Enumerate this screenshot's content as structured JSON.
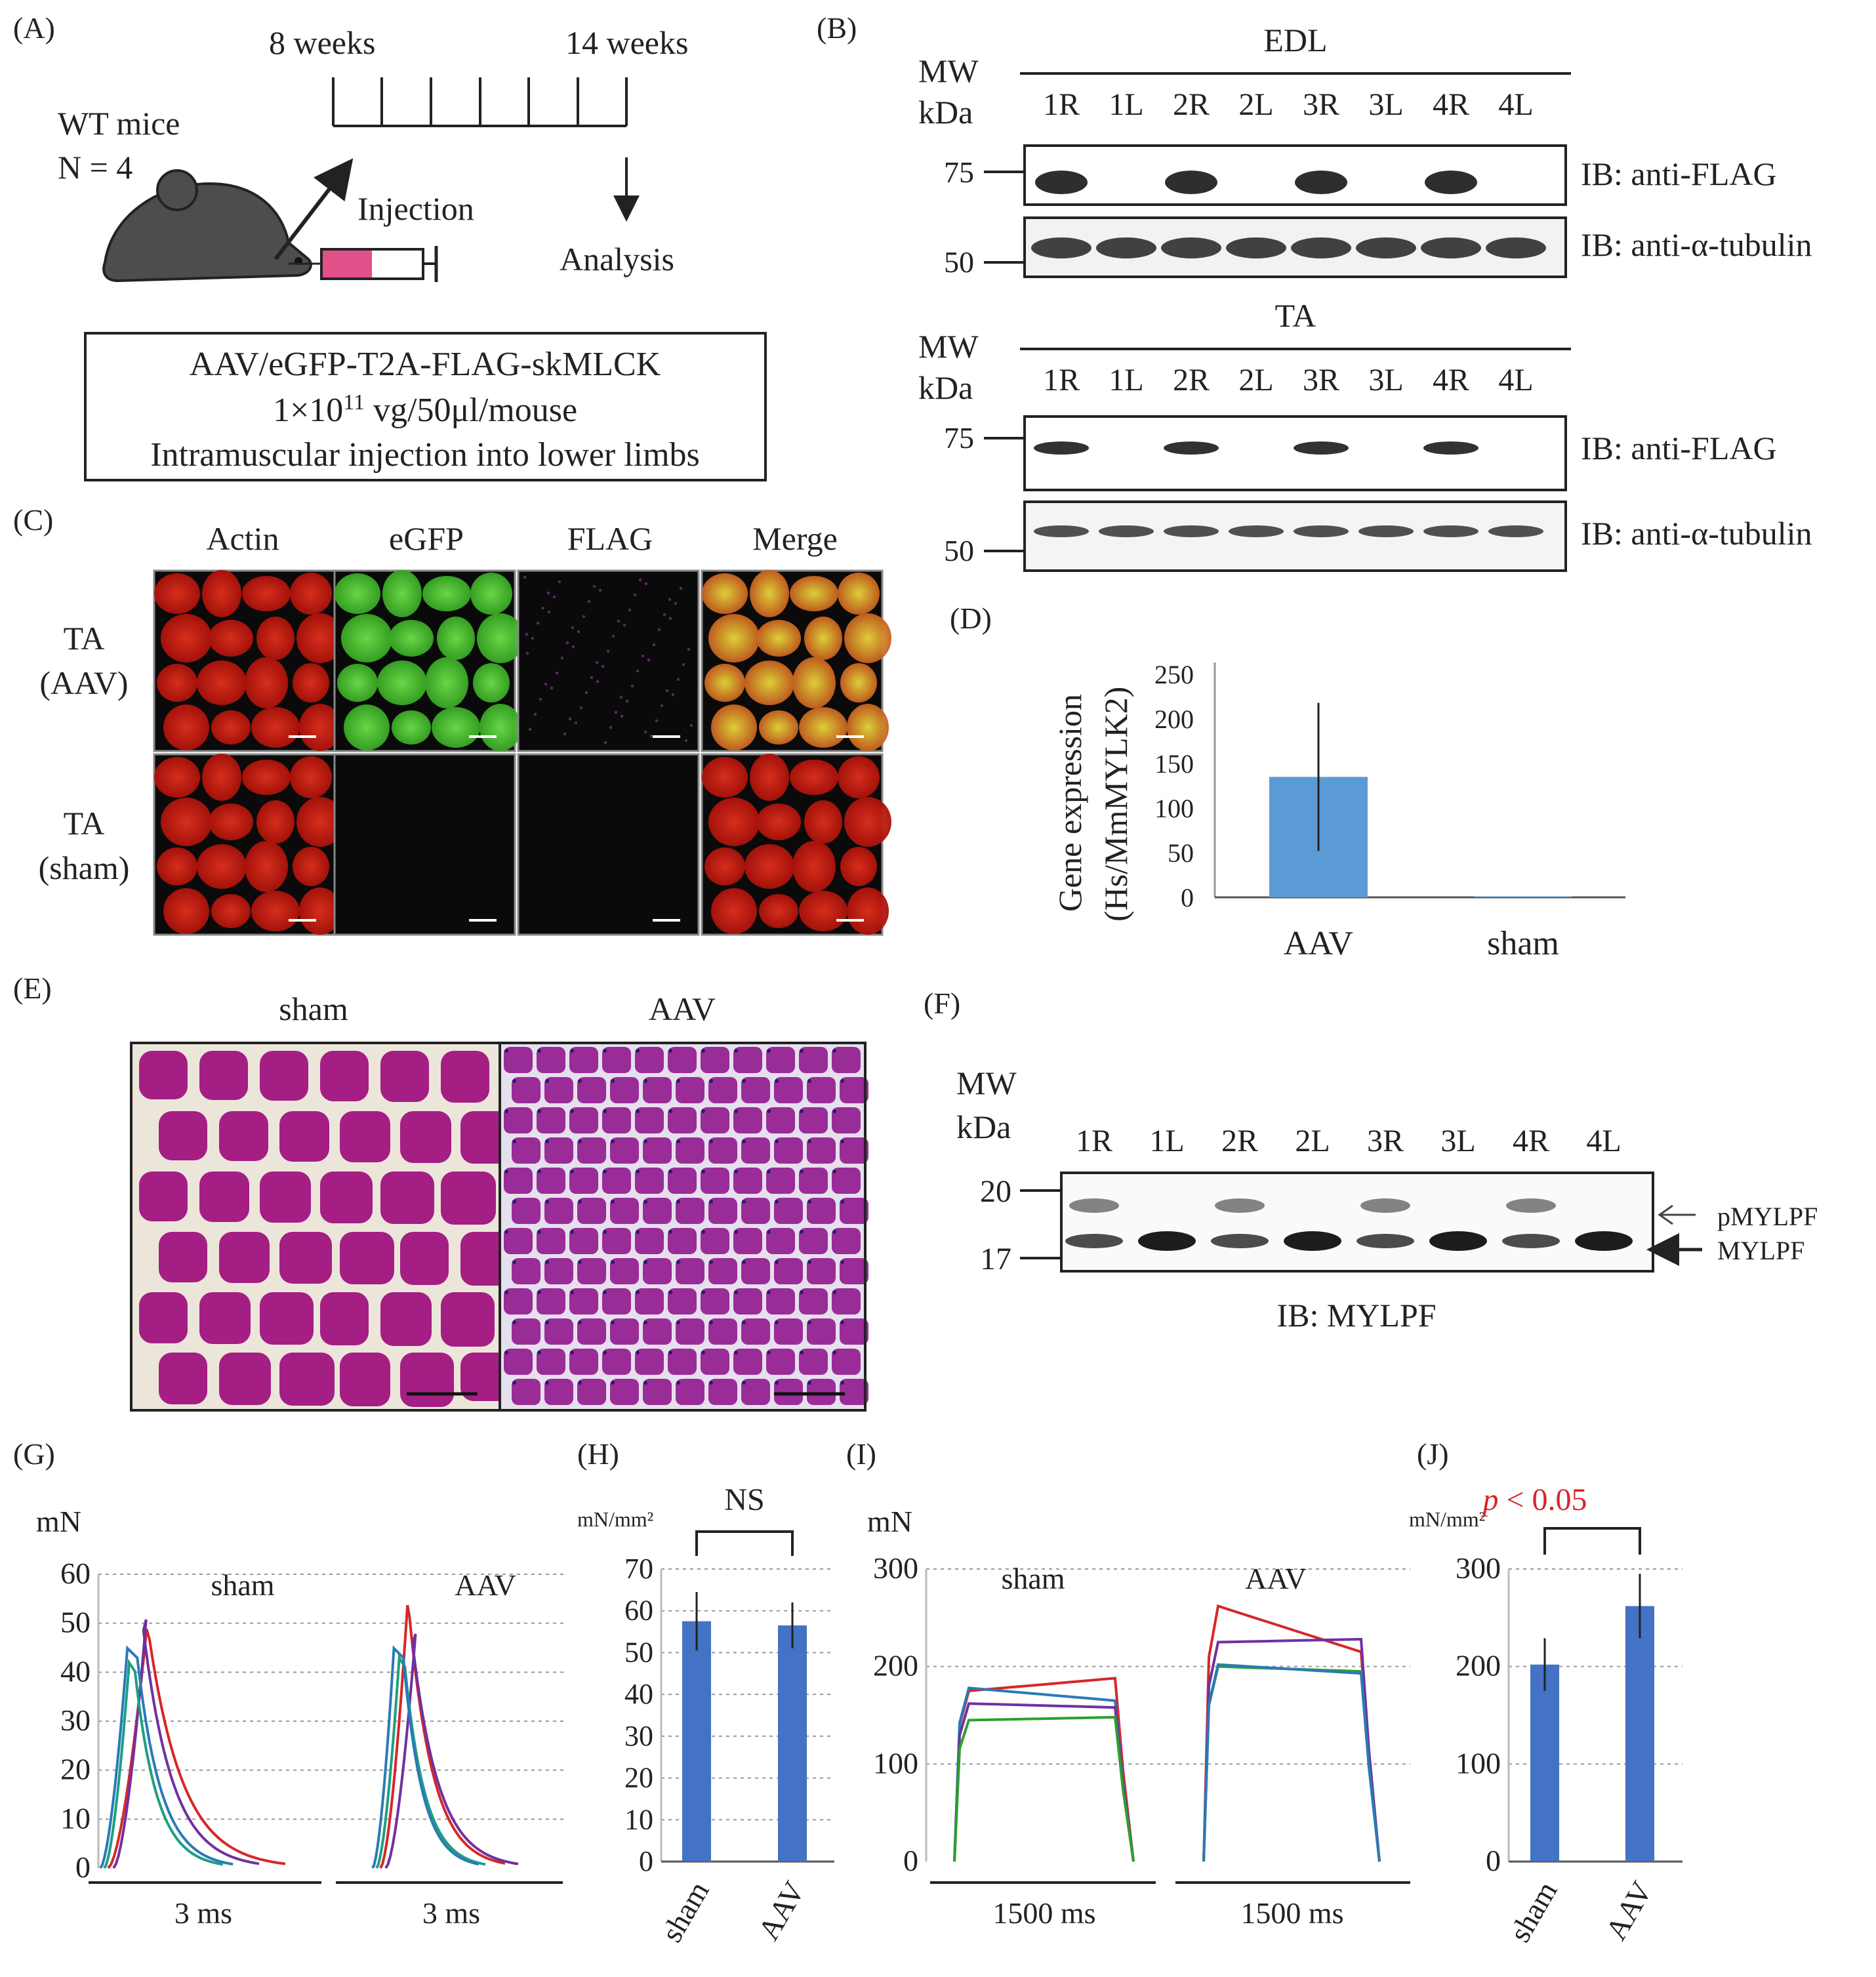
{
  "panels": {
    "A": "(A)",
    "B": "(B)",
    "C": "(C)",
    "D": "(D)",
    "E": "(E)",
    "F": "(F)",
    "G": "(G)",
    "H": "(H)",
    "I": "(I)",
    "J": "(J)"
  },
  "panelA": {
    "week_start": "8 weeks",
    "week_end": "14 weeks",
    "mice_line1": "WT mice",
    "mice_line2": "N = 4",
    "injection": "Injection",
    "analysis": "Analysis",
    "box_line1": "AAV/eGFP-T2A-FLAG-skMLCK",
    "box_line2_pre": "1×10",
    "box_line2_sup": "11",
    "box_line2_post": " vg/50μl/mouse",
    "box_line3": "Intramuscular injection into lower limbs"
  },
  "panelB": {
    "mw_line1": "MW",
    "mw_line2": "kDa",
    "edl_title": "EDL",
    "ta_title": "TA",
    "lanes": [
      "1R",
      "1L",
      "2R",
      "2L",
      "3R",
      "3L",
      "4R",
      "4L"
    ],
    "marker_75": "75",
    "marker_50": "50",
    "ib_flag": "IB: anti-FLAG",
    "ib_tubulin": "IB: anti-α-tubulin",
    "edl_flag_band": [
      1,
      0,
      1,
      0,
      1,
      0,
      1,
      0
    ],
    "ta_flag_band": [
      1,
      0,
      1,
      0,
      1,
      0,
      1,
      0
    ]
  },
  "panelC": {
    "columns": [
      "Actin",
      "eGFP",
      "FLAG",
      "Merge"
    ],
    "row1_line1": "TA",
    "row1_line2": "(AAV)",
    "row2_line1": "TA",
    "row2_line2": "(sham)",
    "colors": {
      "actin": "#c8180e",
      "egfp": "#30b81e",
      "flag": "#7a2a88",
      "merge": "#b8a826"
    }
  },
  "panelD": {
    "ylabel_line1": "Gene expression",
    "ylabel_line2": "(Hs/MmMYLK2)",
    "ticks": [
      "0",
      "50",
      "100",
      "150",
      "200",
      "250"
    ],
    "bar_color": "#5b9bd5"
  },
  "panelE": {
    "left": "sham",
    "right": "AAV"
  },
  "panelF": {
    "mw_line1": "MW",
    "mw_line2": "kDa",
    "lanes": [
      "1R",
      "1L",
      "2R",
      "2L",
      "3R",
      "3L",
      "4R",
      "4L"
    ],
    "marker_20": "20",
    "marker_17": "17",
    "pmylpf": "pMYLPF",
    "mylpf": "MYLPF",
    "ib": "IB: MYLPF"
  },
  "panelG": {
    "unit": "mN",
    "ticks": [
      "0",
      "10",
      "20",
      "30",
      "40",
      "50",
      "60"
    ],
    "sham": "sham",
    "aav": "AAV",
    "scale_left": "3 ms",
    "scale_right": "3 ms"
  },
  "panelH": {
    "unit": "mN/mm²",
    "ticks": [
      "0",
      "10",
      "20",
      "30",
      "40",
      "50",
      "60",
      "70"
    ],
    "sig": "NS",
    "cats": [
      "sham",
      "AAV"
    ]
  },
  "panelI": {
    "unit": "mN",
    "ticks": [
      "0",
      "100",
      "200",
      "300"
    ],
    "sham": "sham",
    "aav": "AAV",
    "scale_left": "1500 ms",
    "scale_right": "1500 ms"
  },
  "panelJ": {
    "unit": "mN/mm²",
    "ticks": [
      "0",
      "100",
      "200",
      "300"
    ],
    "sig_p": "p",
    "sig_rest": " < 0.05",
    "cats": [
      "sham",
      "AAV"
    ]
  },
  "chart_data": [
    {
      "type": "bar",
      "panel": "D",
      "categories": [
        "AAV",
        "sham"
      ],
      "values": [
        135,
        1
      ],
      "error": [
        83,
        0
      ],
      "ylim": [
        0,
        250
      ],
      "ylabel": "Gene expression (Hs/MmMYLK2)"
    },
    {
      "type": "bar",
      "panel": "H",
      "categories": [
        "sham",
        "AAV"
      ],
      "values": [
        57.5,
        56.5
      ],
      "error": [
        7,
        5.5
      ],
      "ylim": [
        0,
        70
      ],
      "ylabel": "mN/mm²",
      "annotation": "NS"
    },
    {
      "type": "bar",
      "panel": "J",
      "categories": [
        "sham",
        "AAV"
      ],
      "values": [
        202,
        262
      ],
      "error": [
        27,
        33
      ],
      "ylim": [
        0,
        300
      ],
      "ylabel": "mN/mm²",
      "annotation": "p < 0.05"
    },
    {
      "type": "line",
      "panel": "G",
      "ylim": [
        0,
        60
      ],
      "ylabel": "mN",
      "series": [
        {
          "group": "sham",
          "color": "#d62728",
          "peak": 50
        },
        {
          "group": "sham",
          "color": "#7030a0",
          "peak": 52
        },
        {
          "group": "sham",
          "color": "#1f9f7f",
          "peak": 43
        },
        {
          "group": "sham",
          "color": "#2a7ab8",
          "peak": 46
        },
        {
          "group": "AAV",
          "color": "#d62728",
          "peak": 55
        },
        {
          "group": "AAV",
          "color": "#7030a0",
          "peak": 49
        },
        {
          "group": "AAV",
          "color": "#1f9f7f",
          "peak": 44
        },
        {
          "group": "AAV",
          "color": "#2a7ab8",
          "peak": 46
        }
      ]
    },
    {
      "type": "line",
      "panel": "I",
      "ylim": [
        0,
        300
      ],
      "ylabel": "mN",
      "series": [
        {
          "group": "sham",
          "color": "#d62728",
          "start": 175,
          "end": 188
        },
        {
          "group": "sham",
          "color": "#2a7ab8",
          "start": 178,
          "end": 165
        },
        {
          "group": "sham",
          "color": "#7030a0",
          "start": 162,
          "end": 158
        },
        {
          "group": "sham",
          "color": "#2ca02c",
          "start": 145,
          "end": 148
        },
        {
          "group": "AAV",
          "color": "#d62728",
          "start": 262,
          "end": 215
        },
        {
          "group": "AAV",
          "color": "#7030a0",
          "start": 225,
          "end": 228
        },
        {
          "group": "AAV",
          "color": "#2ca02c",
          "start": 200,
          "end": 195
        },
        {
          "group": "AAV",
          "color": "#2a7ab8",
          "start": 202,
          "end": 193
        }
      ]
    }
  ]
}
